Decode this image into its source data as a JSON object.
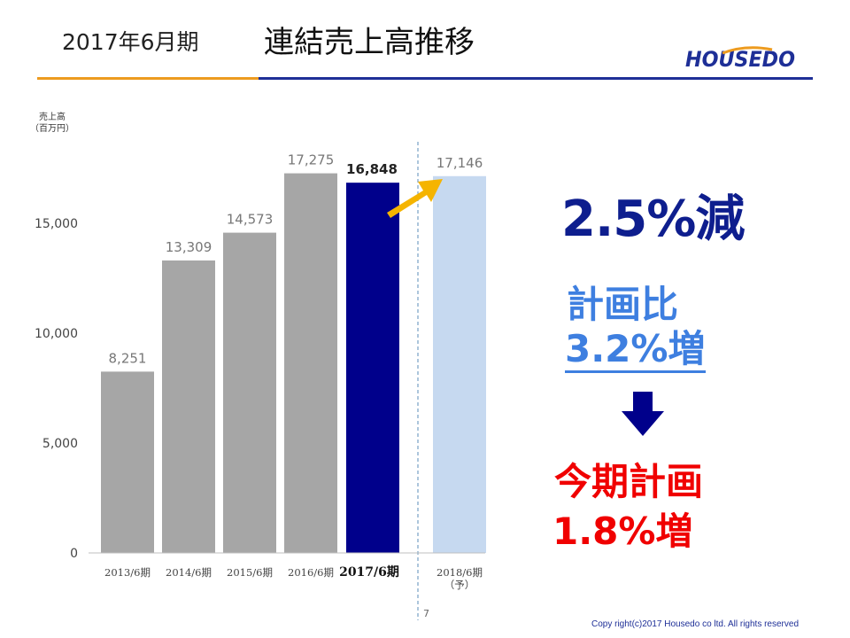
{
  "header": {
    "period": "2017年6月期",
    "title": "連結売上高推移",
    "logo_text": "HOUSEDO"
  },
  "chart_data": {
    "type": "bar",
    "ylabel": "売上高\n（百万円）",
    "ylim": [
      0,
      18000
    ],
    "yticks": [
      0,
      5000,
      10000,
      15000
    ],
    "ytick_labels": [
      "0",
      "5,000",
      "10,000",
      "15,000"
    ],
    "categories": [
      "2013/6期",
      "2014/6期",
      "2015/6期",
      "2016/6期",
      "2017/6期",
      "2018/6期\n（予）"
    ],
    "values": [
      8251,
      13309,
      14573,
      17275,
      16848,
      17146
    ],
    "value_labels": [
      "8,251",
      "13,309",
      "14,573",
      "17,275",
      "16,848",
      "17,146"
    ],
    "bar_colors": [
      "#A6A6A6",
      "#A6A6A6",
      "#A6A6A6",
      "#A6A6A6",
      "#00008B",
      "#C6D9F0"
    ],
    "highlight_index": 4,
    "forecast_index": 5,
    "arrow_color": "#F5B400"
  },
  "annotations": {
    "decrease": "2.5%減",
    "plan_label": "計画比",
    "plan_value": "3.2%増",
    "current_label": "今期計画",
    "current_value": "1.8%増"
  },
  "footer": {
    "page": "7",
    "copyright": "Copy right(c)2017 Housedo co ltd. All rights reserved"
  },
  "colors": {
    "orange_rule": "#ED9B1F",
    "blue_rule": "#1E2F97",
    "decrease": "#0E1E8E",
    "plan": "#3E7FE0",
    "current": "#F00000"
  }
}
